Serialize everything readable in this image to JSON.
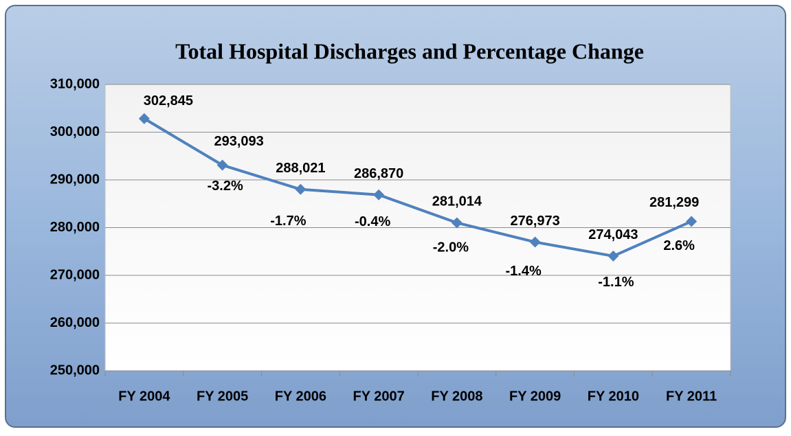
{
  "chart_data": {
    "type": "line",
    "title": "Total Hospital Discharges and Percentage Change",
    "categories": [
      "FY 2004",
      "FY 2005",
      "FY 2006",
      "FY 2007",
      "FY 2008",
      "FY 2009",
      "FY 2010",
      "FY 2011"
    ],
    "values": [
      302845,
      293093,
      288021,
      286870,
      281014,
      276973,
      274043,
      281299
    ],
    "value_labels": [
      "302,845",
      "293,093",
      "288,021",
      "286,870",
      "281,014",
      "276,973",
      "274,043",
      "281,299"
    ],
    "annotations": [
      "-3.2%",
      "-1.7%",
      "-0.4%",
      "-2.0%",
      "-1.4%",
      "-1.1%",
      "2.6%"
    ],
    "color": "#4f81bd",
    "ylim": [
      250000,
      310000
    ],
    "yticks": [
      {
        "value": 250000,
        "label": "250,000"
      },
      {
        "value": 260000,
        "label": "260,000"
      },
      {
        "value": 270000,
        "label": "270,000"
      },
      {
        "value": 280000,
        "label": "280,000"
      },
      {
        "value": 290000,
        "label": "290,000"
      },
      {
        "value": 300000,
        "label": "300,000"
      },
      {
        "value": 310000,
        "label": "310,000"
      }
    ],
    "grid": true
  }
}
